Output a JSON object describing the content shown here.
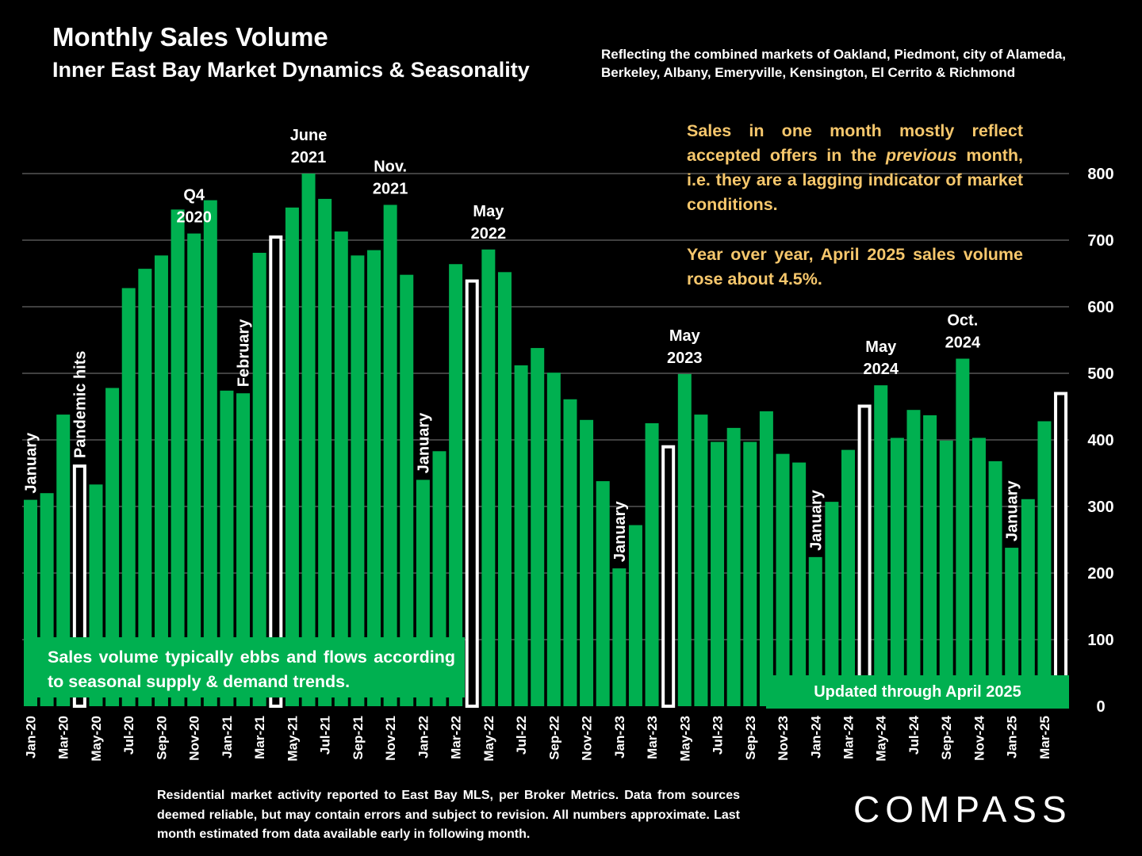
{
  "header": {
    "title": "Monthly Sales Volume",
    "subtitle": "Inner East Bay Market Dynamics & Seasonality",
    "markets_line1": "Reflecting the combined markets of Oakland, Piedmont, city of Alameda,",
    "markets_line2": "Berkeley, Albany, Emeryville, Kensington, El Cerrito & Richmond"
  },
  "note": {
    "p1_a": "Sales in one month mostly reflect accepted offers in the ",
    "p1_em": "previous",
    "p1_b": " month, i.e. they are a lagging indicator of market conditions.",
    "p2": "Year over year, April 2025 sales volume rose about 4.5%."
  },
  "box_left": "Sales volume typically ebbs and flows according to seasonal supply & demand trends.",
  "box_right": "Updated through April 2025",
  "footnote": "Residential market activity reported to East Bay MLS, per Broker Metrics. Data from sources deemed reliable, but may contain errors and subject to revision. All numbers approximate. Last month estimated from data available early in following month.",
  "logo": "COMPASS",
  "colors": {
    "bar": "#00b050",
    "highlight_border": "#ffffff",
    "note_text": "#f6c76c",
    "grid": "#808080"
  },
  "chart_data": {
    "type": "bar",
    "ylim": [
      0,
      800
    ],
    "yticks": [
      0,
      100,
      200,
      300,
      400,
      500,
      600,
      700,
      800
    ],
    "grid": true,
    "y_axis_position": "right",
    "categories": [
      "Jan-20",
      "Feb-20",
      "Mar-20",
      "Apr-20",
      "May-20",
      "Jun-20",
      "Jul-20",
      "Aug-20",
      "Sep-20",
      "Oct-20",
      "Nov-20",
      "Dec-20",
      "Jan-21",
      "Feb-21",
      "Mar-21",
      "Apr-21",
      "May-21",
      "Jun-21",
      "Jul-21",
      "Aug-21",
      "Sep-21",
      "Oct-21",
      "Nov-21",
      "Dec-21",
      "Jan-22",
      "Feb-22",
      "Mar-22",
      "Apr-22",
      "May-22",
      "Jun-22",
      "Jul-22",
      "Aug-22",
      "Sep-22",
      "Oct-22",
      "Nov-22",
      "Dec-22",
      "Jan-23",
      "Feb-23",
      "Mar-23",
      "Apr-23",
      "May-23",
      "Jun-23",
      "Jul-23",
      "Aug-23",
      "Sep-23",
      "Oct-23",
      "Nov-23",
      "Dec-23",
      "Jan-24",
      "Feb-24",
      "Mar-24",
      "Apr-24",
      "May-24",
      "Jun-24",
      "Jul-24",
      "Aug-24",
      "Sep-24",
      "Oct-24",
      "Nov-24",
      "Dec-24",
      "Jan-25",
      "Feb-25",
      "Mar-25",
      "Apr-25"
    ],
    "values": [
      310,
      320,
      438,
      363,
      333,
      478,
      628,
      657,
      677,
      746,
      710,
      760,
      474,
      470,
      681,
      707,
      749,
      800,
      762,
      713,
      677,
      685,
      753,
      648,
      340,
      383,
      664,
      641,
      686,
      652,
      512,
      538,
      501,
      461,
      430,
      338,
      207,
      272,
      425,
      392,
      499,
      438,
      397,
      418,
      397,
      443,
      379,
      366,
      224,
      307,
      385,
      453,
      482,
      403,
      445,
      437,
      399,
      522,
      403,
      368,
      238,
      311,
      428,
      472
    ],
    "highlighted_categories": [
      "Apr-20",
      "Apr-21",
      "Apr-22",
      "Apr-23",
      "Apr-24",
      "Apr-25"
    ],
    "tick_labels": [
      "Jan-20",
      "Mar-20",
      "May-20",
      "Jul-20",
      "Sep-20",
      "Nov-20",
      "Jan-21",
      "Mar-21",
      "May-21",
      "Jul-21",
      "Sep-21",
      "Nov-21",
      "Jan-22",
      "Mar-22",
      "May-22",
      "Jul-22",
      "Sep-22",
      "Nov-22",
      "Jan-23",
      "Mar-23",
      "May-23",
      "Jul-23",
      "Sep-23",
      "Nov-23",
      "Jan-24",
      "Mar-24",
      "May-24",
      "Jul-24",
      "Sep-24",
      "Nov-24",
      "Jan-25",
      "Mar-25"
    ],
    "annotations": [
      {
        "category": "Jan-20",
        "lines": [
          "January"
        ],
        "vertical": true
      },
      {
        "category": "Apr-20",
        "lines": [
          "Pandemic hits"
        ],
        "vertical": true
      },
      {
        "category": "Feb-21",
        "lines": [
          "February"
        ],
        "vertical": true
      },
      {
        "category": "Jan-22",
        "lines": [
          "January"
        ],
        "vertical": true
      },
      {
        "category": "Jan-23",
        "lines": [
          "January"
        ],
        "vertical": true
      },
      {
        "category": "Jan-24",
        "lines": [
          "January"
        ],
        "vertical": true
      },
      {
        "category": "Jan-25",
        "lines": [
          "January"
        ],
        "vertical": true
      },
      {
        "category": "Nov-20",
        "lines": [
          "Q4",
          "2020"
        ],
        "vertical": false
      },
      {
        "category": "Jun-21",
        "lines": [
          "June",
          "2021"
        ],
        "vertical": false
      },
      {
        "category": "Nov-21",
        "lines": [
          "Nov.",
          "2021"
        ],
        "vertical": false
      },
      {
        "category": "May-22",
        "lines": [
          "May",
          "2022"
        ],
        "vertical": false
      },
      {
        "category": "May-23",
        "lines": [
          "May",
          "2023"
        ],
        "vertical": false
      },
      {
        "category": "May-24",
        "lines": [
          "May",
          "2024"
        ],
        "vertical": false
      },
      {
        "category": "Oct-24",
        "lines": [
          "Oct.",
          "2024"
        ],
        "vertical": false
      }
    ]
  }
}
